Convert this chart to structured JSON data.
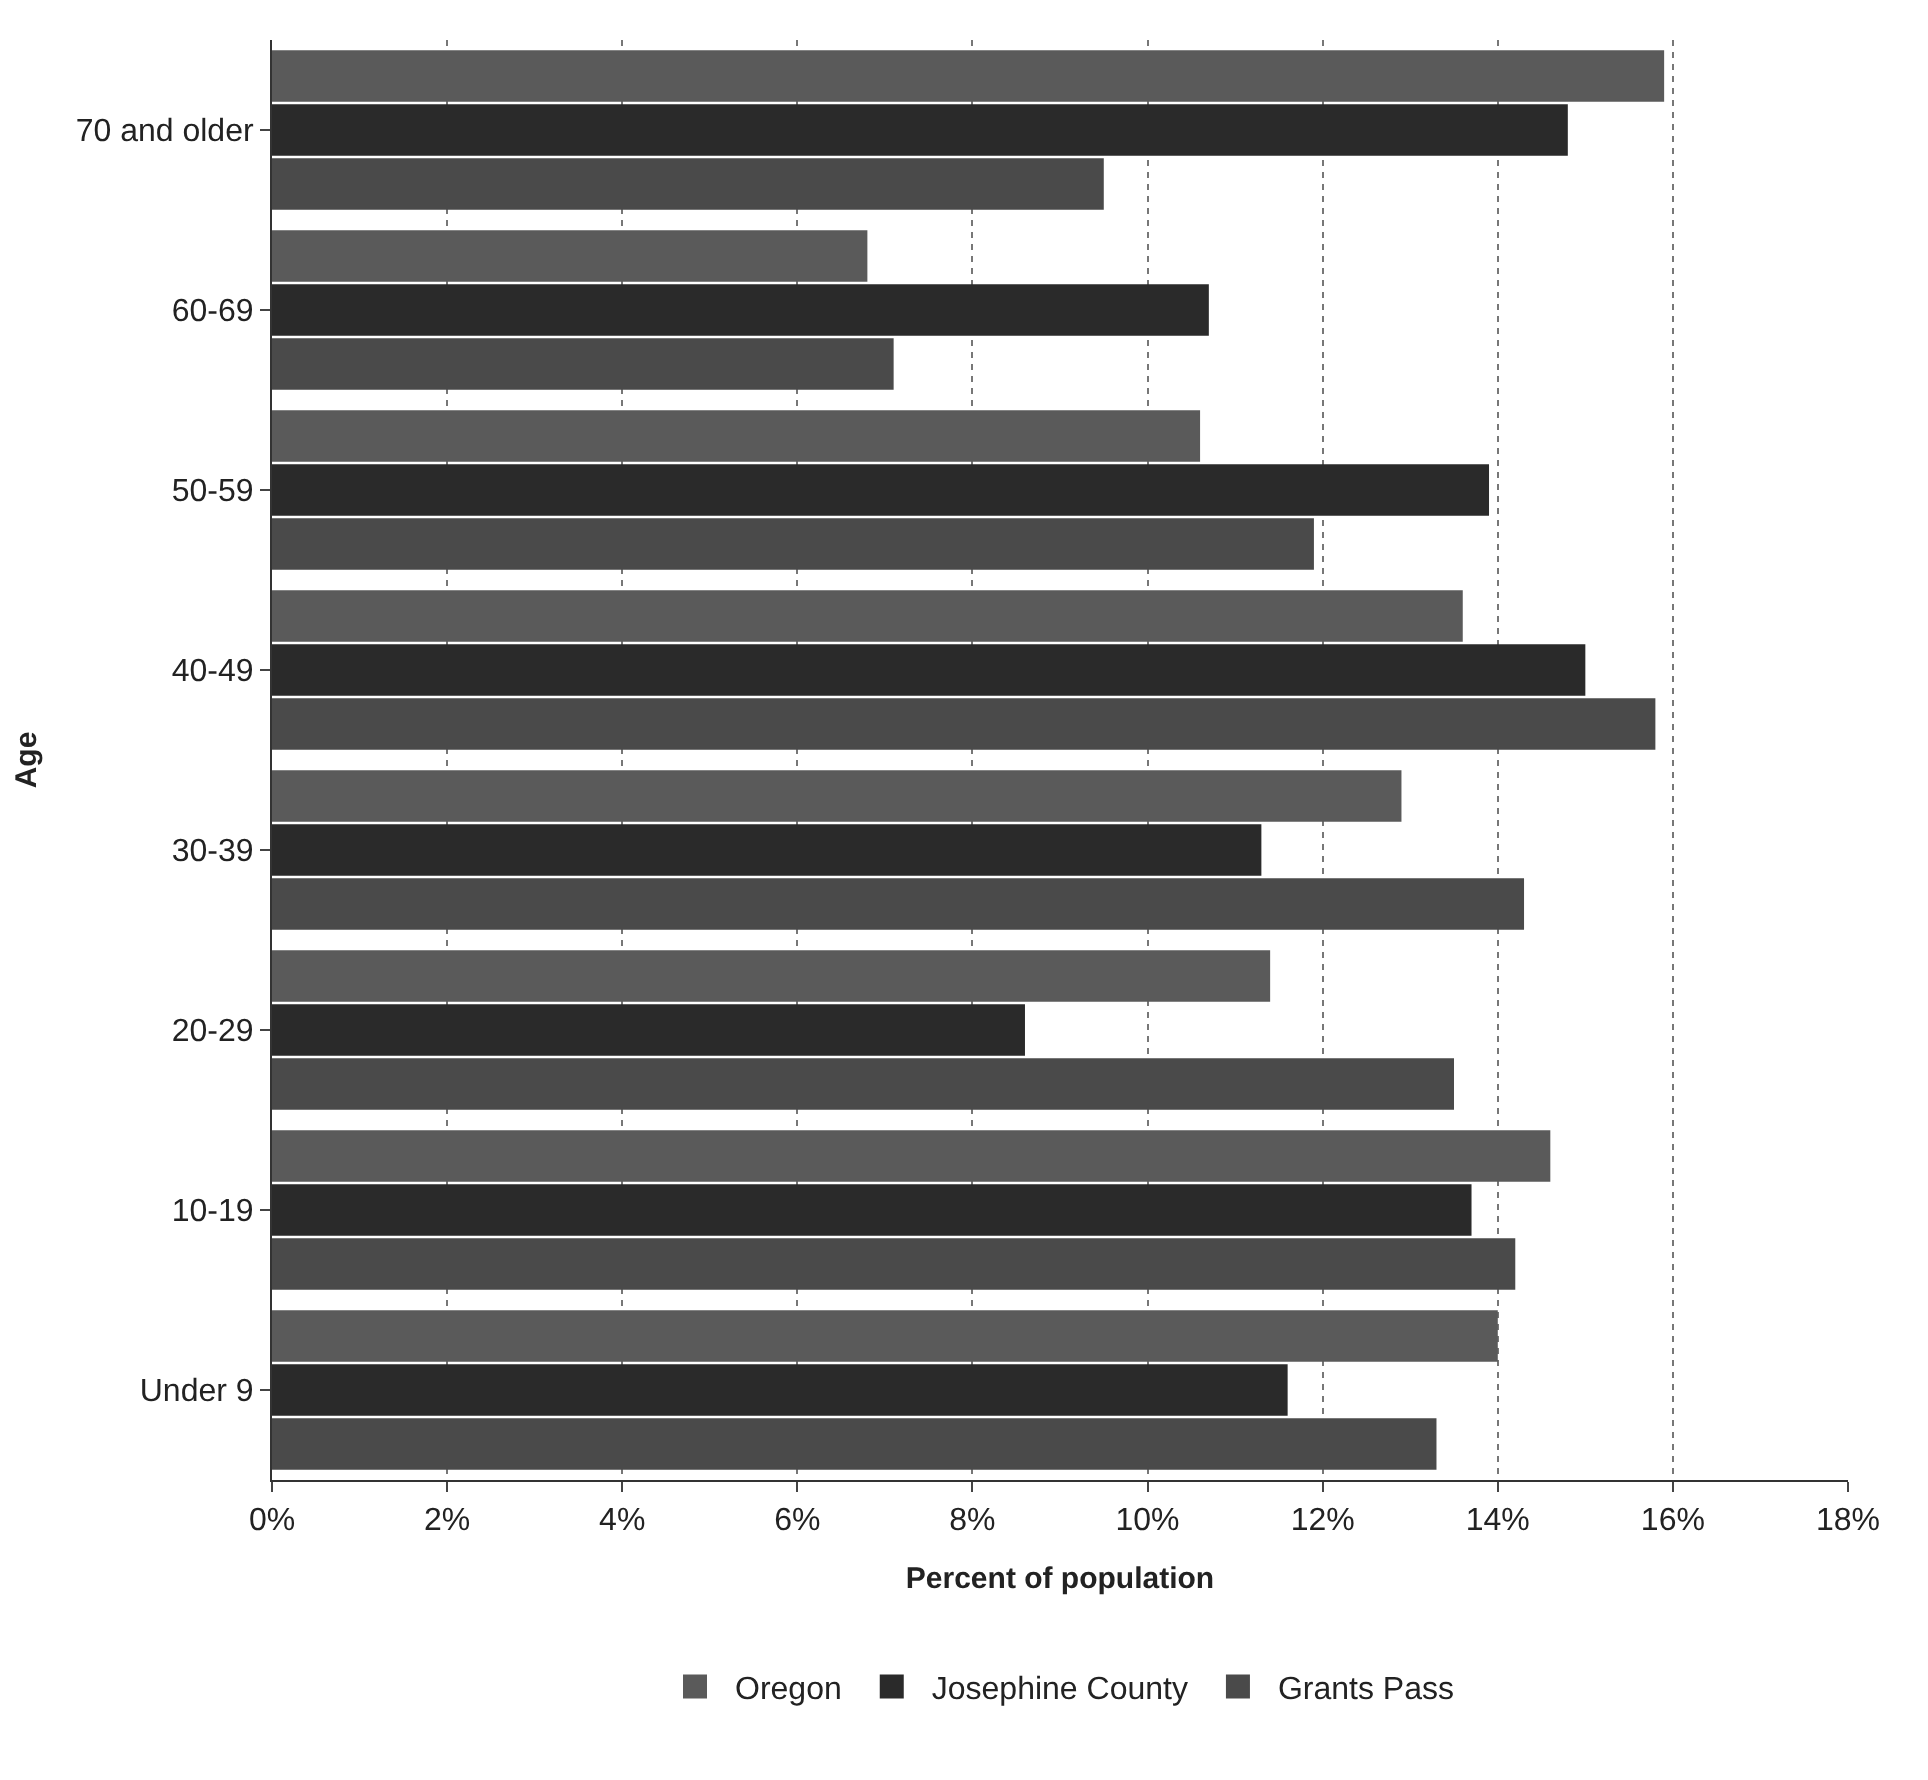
{
  "chart_data": {
    "type": "bar",
    "orientation": "horizontal",
    "xlabel": "Percent of population",
    "ylabel": "Age",
    "categories": [
      "70 and older",
      "60-69",
      "50-59",
      "40-49",
      "30-39",
      "20-29",
      "10-19",
      "Under 9"
    ],
    "series": [
      {
        "name": "Oregon",
        "color": "#5a5a5a",
        "values": [
          15.9,
          6.8,
          10.6,
          13.6,
          12.9,
          11.4,
          14.6,
          14.0
        ]
      },
      {
        "name": "Josephine County",
        "color": "#2a2a2a",
        "values": [
          14.8,
          10.7,
          13.9,
          15.0,
          11.3,
          8.6,
          13.7,
          11.6
        ]
      },
      {
        "name": "Grants Pass",
        "color": "#4a4a4a",
        "values": [
          9.5,
          7.1,
          11.9,
          15.8,
          14.3,
          13.5,
          14.2,
          13.3
        ]
      }
    ],
    "xlim": [
      0,
      18
    ],
    "xticks": [
      {
        "value": 0,
        "label": "0%"
      },
      {
        "value": 2,
        "label": "2%"
      },
      {
        "value": 4,
        "label": "4%"
      },
      {
        "value": 6,
        "label": "6%"
      },
      {
        "value": 8,
        "label": "8%"
      },
      {
        "value": 10,
        "label": "10%"
      },
      {
        "value": 12,
        "label": "12%"
      },
      {
        "value": 14,
        "label": "14%"
      },
      {
        "value": 16,
        "label": "16%"
      },
      {
        "value": 18,
        "label": "18%"
      }
    ],
    "grid": "x",
    "legend": "bottom"
  }
}
